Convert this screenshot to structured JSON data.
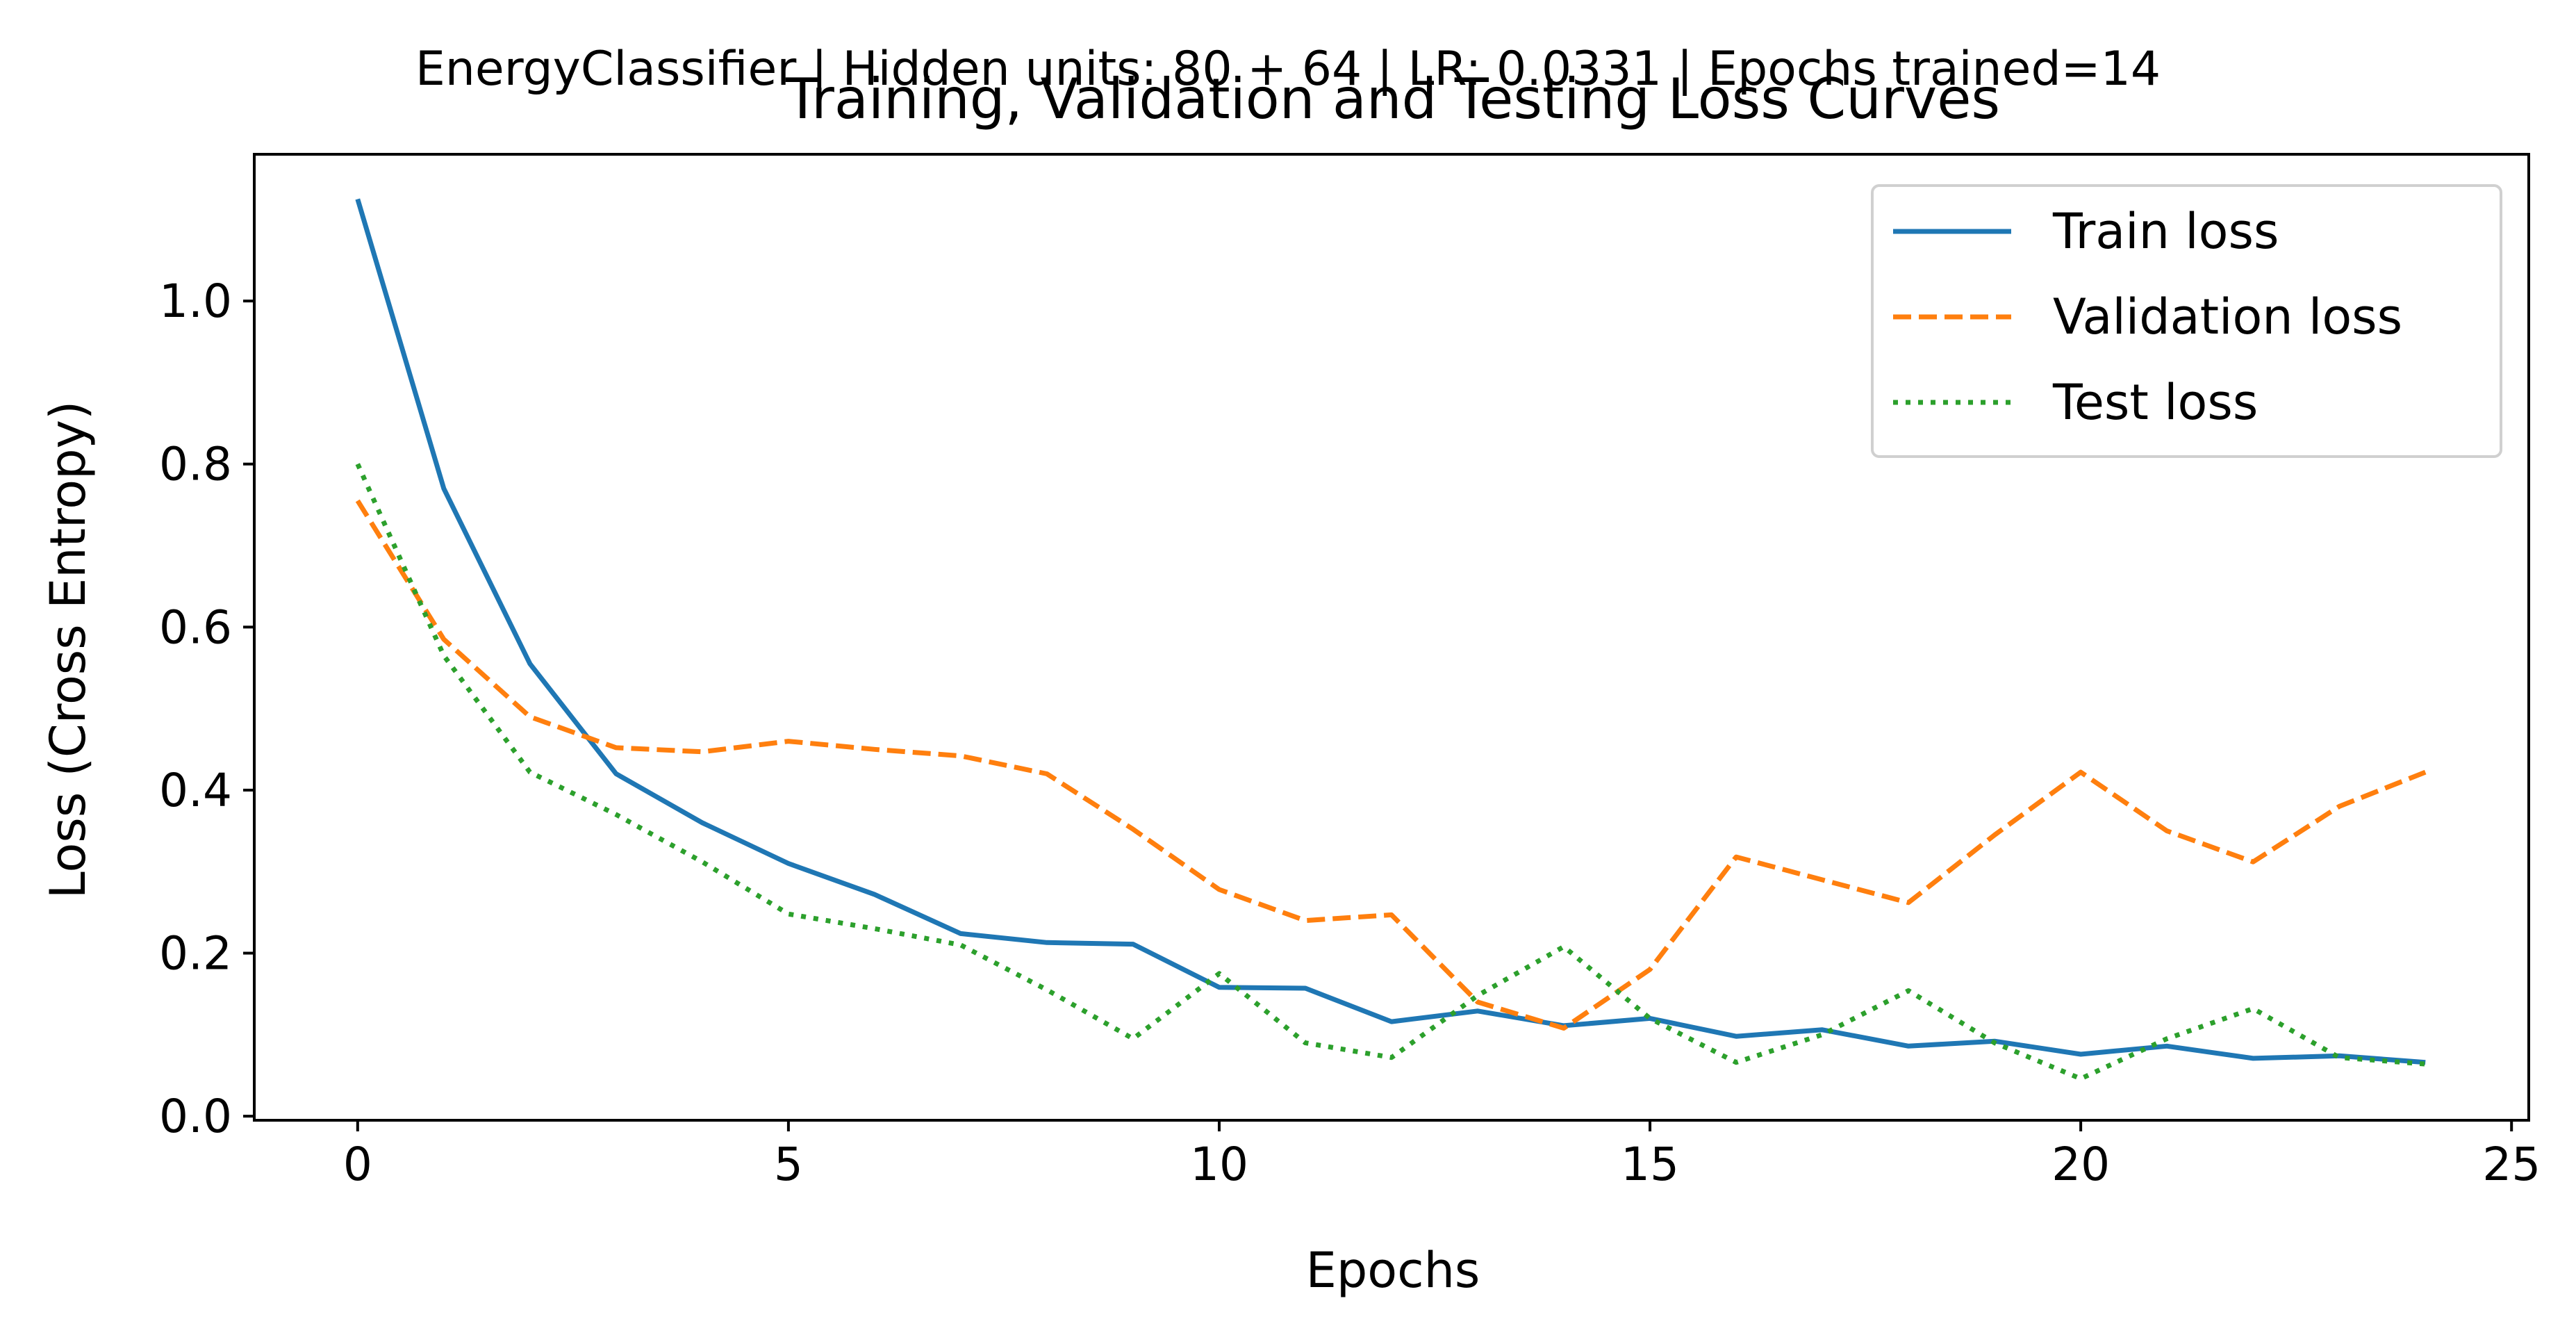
{
  "chart_data": {
    "type": "line",
    "suptitle": "EnergyClassifier | Hidden units: 80 + 64 | LR: 0.0331 | Epochs trained=14",
    "title": "Training, Validation and Testing Loss Curves",
    "xlabel": "Epochs",
    "ylabel": "Loss (Cross Entropy)",
    "xlim": [
      -1.2,
      25.2
    ],
    "ylim": [
      -0.005,
      1.18
    ],
    "xticks": [
      0,
      5,
      10,
      15,
      20,
      25
    ],
    "yticks": [
      0.0,
      0.2,
      0.4,
      0.6,
      0.8,
      1.0
    ],
    "ytick_labels": [
      "0.0",
      "0.2",
      "0.4",
      "0.6",
      "0.8",
      "1.0"
    ],
    "grid": false,
    "legend_position": "top-right",
    "x": [
      0,
      1,
      2,
      3,
      4,
      5,
      6,
      7,
      8,
      9,
      10,
      11,
      12,
      13,
      14,
      15,
      16,
      17,
      18,
      19,
      20,
      21,
      22,
      23,
      24
    ],
    "series": [
      {
        "name": "Train loss",
        "color": "#1f77b4",
        "style": "solid",
        "values": [
          1.125,
          0.77,
          0.555,
          0.42,
          0.36,
          0.31,
          0.272,
          0.224,
          0.213,
          0.211,
          0.158,
          0.157,
          0.116,
          0.129,
          0.111,
          0.12,
          0.098,
          0.106,
          0.086,
          0.092,
          0.076,
          0.086,
          0.071,
          0.074,
          0.066
        ]
      },
      {
        "name": "Validation loss",
        "color": "#ff7f0e",
        "style": "dashed",
        "values": [
          0.755,
          0.585,
          0.49,
          0.452,
          0.447,
          0.46,
          0.45,
          0.442,
          0.42,
          0.352,
          0.278,
          0.24,
          0.247,
          0.14,
          0.108,
          0.18,
          0.318,
          0.29,
          0.262,
          0.345,
          0.422,
          0.35,
          0.312,
          0.38,
          0.422
        ]
      },
      {
        "name": "Test loss",
        "color": "#2ca02c",
        "style": "dotted",
        "values": [
          0.8,
          0.565,
          0.422,
          0.37,
          0.312,
          0.248,
          0.23,
          0.21,
          0.155,
          0.095,
          0.175,
          0.09,
          0.072,
          0.148,
          0.208,
          0.12,
          0.066,
          0.1,
          0.154,
          0.09,
          0.046,
          0.095,
          0.132,
          0.072,
          0.064
        ]
      }
    ]
  }
}
